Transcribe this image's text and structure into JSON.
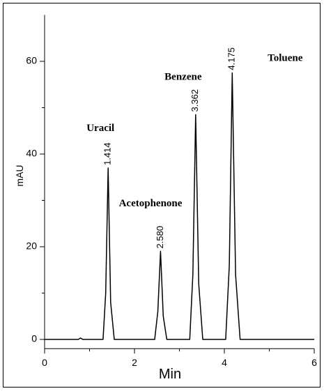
{
  "chart_data": {
    "type": "line",
    "x_label": "Min",
    "y_label": "mAU",
    "x": [
      0,
      0.75,
      0.8,
      0.85,
      1.3,
      1.36,
      1.414,
      1.47,
      1.55,
      2.45,
      2.52,
      2.58,
      2.64,
      2.72,
      3.23,
      3.3,
      3.362,
      3.43,
      3.52,
      4.03,
      4.11,
      4.175,
      4.25,
      4.35,
      6
    ],
    "values": [
      0,
      0,
      0.3,
      0,
      0,
      10,
      37,
      8,
      0,
      0,
      6,
      19,
      5,
      0,
      0,
      14,
      48.5,
      12,
      0,
      0,
      16,
      57.5,
      14,
      0,
      0
    ],
    "color": "#000000",
    "peaks": {
      "names": [
        "Uracil",
        "Acetophenone",
        "Benzene",
        "Toluene"
      ],
      "retention_times": [
        1.414,
        2.58,
        3.362,
        4.175
      ],
      "heights": [
        37,
        19,
        48.5,
        57.5
      ],
      "value_labels": [
        "1.414",
        "2.580",
        "3.362",
        "4.175"
      ]
    },
    "xlim": [
      0,
      6
    ],
    "xticks": [
      0,
      2,
      4,
      6
    ],
    "x_minor_ticks": [
      1,
      3,
      5
    ],
    "ylim": [
      -2,
      70
    ],
    "yticks": [
      0,
      20,
      40,
      60
    ],
    "y_minor_ticks": [
      10,
      30,
      50
    ],
    "grid": false
  }
}
